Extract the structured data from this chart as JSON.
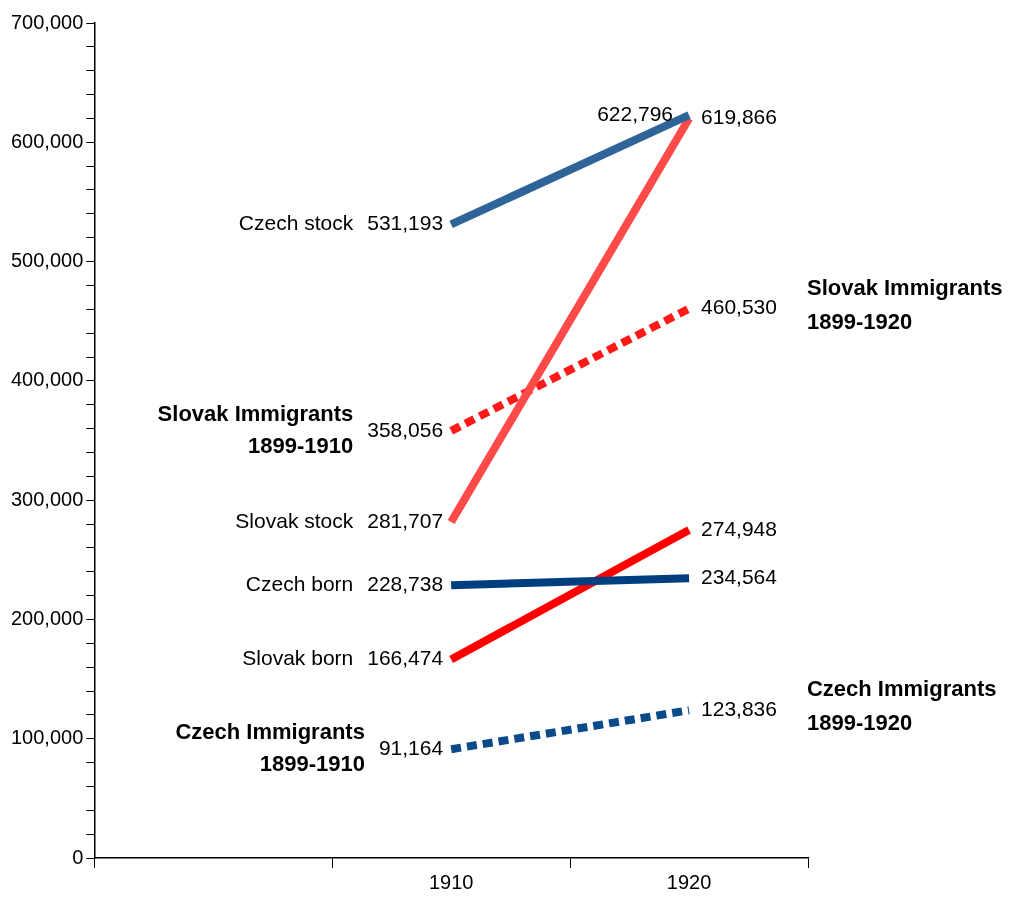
{
  "chart_data": {
    "type": "line",
    "categories": [
      null,
      "1910",
      "1920"
    ],
    "series": [
      {
        "color": "#2f6499",
        "line_style": "solid",
        "values": [
          null,
          531193,
          622796
        ],
        "value_labels": [
          null,
          "531,193",
          "622,796"
        ]
      },
      {
        "color": "#ff4a4a",
        "line_style": "solid",
        "values": [
          null,
          281707,
          619866
        ],
        "value_labels": [
          null,
          "281,707",
          "619,866"
        ]
      },
      {
        "color": "#ff1a1a",
        "line_style": "dashed",
        "values": [
          null,
          358056,
          460530
        ],
        "value_labels": [
          null,
          "358,056",
          "460,530"
        ]
      },
      {
        "color": "#003f7f",
        "line_style": "solid",
        "values": [
          null,
          228738,
          234564
        ],
        "value_labels": [
          null,
          "228,738",
          "234,564"
        ]
      },
      {
        "color": "#ff0000",
        "line_style": "solid",
        "values": [
          null,
          166474,
          274948
        ],
        "value_labels": [
          null,
          "166,474",
          "274,948"
        ]
      },
      {
        "color": "#0a4a8a",
        "line_style": "dashed",
        "values": [
          null,
          91164,
          123836
        ],
        "value_labels": [
          null,
          "91,164",
          "123,836"
        ]
      }
    ],
    "annotations": [
      "Czech stock",
      "Slovak stock",
      "Slovak Immigrants 1899-1910",
      "Czech born",
      "Slovak born",
      "Czech Immigrants 1899-1910",
      "Slovak Immigrants 1899-1920",
      "Czech Immigrants 1899-1920"
    ],
    "ylim": [
      0,
      700000
    ],
    "yticks": [
      {
        "value": 0,
        "label": "0"
      },
      {
        "value": 20000,
        "label": null
      },
      {
        "value": 40000,
        "label": null
      },
      {
        "value": 60000,
        "label": null
      },
      {
        "value": 80000,
        "label": null
      },
      {
        "value": 100000,
        "label": "100,000"
      },
      {
        "value": 120000,
        "label": null
      },
      {
        "value": 140000,
        "label": null
      },
      {
        "value": 160000,
        "label": null
      },
      {
        "value": 180000,
        "label": null
      },
      {
        "value": 200000,
        "label": "200,000"
      },
      {
        "value": 220000,
        "label": null
      },
      {
        "value": 240000,
        "label": null
      },
      {
        "value": 260000,
        "label": null
      },
      {
        "value": 280000,
        "label": null
      },
      {
        "value": 300000,
        "label": "300,000"
      },
      {
        "value": 320000,
        "label": null
      },
      {
        "value": 340000,
        "label": null
      },
      {
        "value": 360000,
        "label": null
      },
      {
        "value": 380000,
        "label": null
      },
      {
        "value": 400000,
        "label": "400,000"
      },
      {
        "value": 420000,
        "label": null
      },
      {
        "value": 440000,
        "label": null
      },
      {
        "value": 460000,
        "label": null
      },
      {
        "value": 480000,
        "label": null
      },
      {
        "value": 500000,
        "label": "500,000"
      },
      {
        "value": 520000,
        "label": null
      },
      {
        "value": 540000,
        "label": null
      },
      {
        "value": 560000,
        "label": null
      },
      {
        "value": 580000,
        "label": null
      },
      {
        "value": 600000,
        "label": "600,000"
      },
      {
        "value": 620000,
        "label": null
      },
      {
        "value": 640000,
        "label": null
      },
      {
        "value": 660000,
        "label": null
      },
      {
        "value": 680000,
        "label": null
      },
      {
        "value": 700000,
        "label": "700,000"
      }
    ],
    "grid": false,
    "legend": false,
    "marker": "none"
  }
}
